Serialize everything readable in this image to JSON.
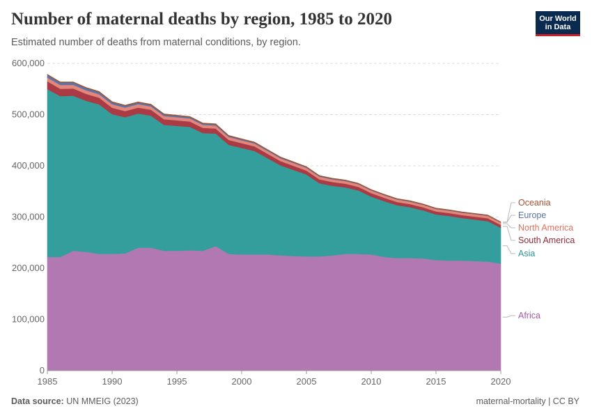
{
  "header": {
    "title": "Number of maternal deaths by region, 1985 to 2020",
    "subtitle": "Estimated number of deaths from maternal conditions, by region."
  },
  "logo": {
    "line1": "Our World",
    "line2": "in Data"
  },
  "footer": {
    "source_label": "Data source:",
    "source_value": "UN MMEIG (2023)",
    "slug": "maternal-mortality | CC BY"
  },
  "chart_data": {
    "type": "area",
    "stacked": true,
    "title": "Number of maternal deaths by region, 1985 to 2020",
    "subtitle": "Estimated number of deaths from maternal conditions, by region.",
    "xlabel": "",
    "ylabel": "",
    "x": [
      1985,
      1986,
      1987,
      1988,
      1989,
      1990,
      1991,
      1992,
      1993,
      1994,
      1995,
      1996,
      1997,
      1998,
      1999,
      2000,
      2001,
      2002,
      2003,
      2004,
      2005,
      2006,
      2007,
      2008,
      2009,
      2010,
      2011,
      2012,
      2013,
      2014,
      2015,
      2016,
      2017,
      2018,
      2019,
      2020
    ],
    "x_ticks": [
      1985,
      1990,
      1995,
      2000,
      2005,
      2010,
      2015,
      2020
    ],
    "x_ticks_labels": [
      "1985",
      "1990",
      "1995",
      "2000",
      "2005",
      "2010",
      "2015",
      "2020"
    ],
    "xlim": [
      1985,
      2020
    ],
    "ylim": [
      0,
      600000
    ],
    "y_ticks": [
      0,
      100000,
      200000,
      300000,
      400000,
      500000,
      600000
    ],
    "y_ticks_labels": [
      "0",
      "100,000",
      "200,000",
      "300,000",
      "400,000",
      "500,000",
      "600,000"
    ],
    "grid": "horizontal dashed",
    "legend": "right, inline labels",
    "series": [
      {
        "name": "Africa",
        "color": "#b278b1",
        "values": [
          222000,
          222000,
          234000,
          232000,
          228000,
          228000,
          229000,
          240000,
          240000,
          234000,
          234000,
          235000,
          234000,
          243000,
          228000,
          227000,
          227000,
          227000,
          225000,
          224000,
          223000,
          223000,
          225000,
          228000,
          228000,
          227000,
          222000,
          220000,
          220000,
          219000,
          216000,
          215000,
          215000,
          214000,
          213000,
          209000
        ]
      },
      {
        "name": "Asia",
        "color": "#339e9b",
        "values": [
          328000,
          314000,
          303000,
          295000,
          292000,
          273000,
          266000,
          262000,
          258000,
          246000,
          244000,
          241000,
          230000,
          220000,
          213000,
          208000,
          202000,
          188000,
          176000,
          168000,
          160000,
          143000,
          136000,
          130000,
          124000,
          113000,
          109000,
          103000,
          99000,
          94000,
          89000,
          87000,
          83000,
          81000,
          79000,
          70000
        ]
      },
      {
        "name": "South America",
        "color": "#aa3a44",
        "values": [
          15000,
          14500,
          14000,
          13500,
          13000,
          12500,
          12000,
          11800,
          11500,
          11000,
          10800,
          10500,
          10200,
          9800,
          9500,
          9200,
          8900,
          8600,
          8300,
          8000,
          7800,
          7600,
          7400,
          7200,
          7000,
          6800,
          6600,
          6400,
          6200,
          6100,
          6000,
          5900,
          5800,
          5800,
          5700,
          5600
        ]
      },
      {
        "name": "North America",
        "color": "#e1877c",
        "values": [
          7500,
          7300,
          7200,
          7000,
          6900,
          6800,
          6700,
          6600,
          6500,
          6300,
          6200,
          6100,
          6000,
          5900,
          5800,
          5700,
          5600,
          5500,
          5400,
          5400,
          5300,
          5200,
          5200,
          5100,
          5100,
          5000,
          5000,
          4900,
          4900,
          4800,
          4800,
          4800,
          4700,
          4700,
          4700,
          4600
        ]
      },
      {
        "name": "Europe",
        "color": "#5b74a8",
        "values": [
          5000,
          4700,
          4500,
          4300,
          4000,
          3700,
          3500,
          3300,
          3100,
          2900,
          2700,
          2500,
          2300,
          2100,
          1900,
          1800,
          1700,
          1600,
          1500,
          1400,
          1300,
          1200,
          1100,
          1000,
          950,
          900,
          850,
          800,
          750,
          700,
          650,
          620,
          600,
          580,
          560,
          540
        ]
      },
      {
        "name": "Oceania",
        "color": "#a0522d",
        "values": [
          1300,
          1300,
          1300,
          1300,
          1300,
          1300,
          1300,
          1250,
          1250,
          1250,
          1200,
          1200,
          1200,
          1200,
          1200,
          1150,
          1150,
          1150,
          1100,
          1100,
          1100,
          1100,
          1050,
          1050,
          1050,
          1000,
          1000,
          1000,
          1000,
          1000,
          950,
          950,
          950,
          950,
          950,
          900
        ]
      }
    ],
    "labels": [
      {
        "name": "Oceania",
        "color": "#a0522d"
      },
      {
        "name": "Europe",
        "color": "#5b74a8"
      },
      {
        "name": "North America",
        "color": "#e0715f"
      },
      {
        "name": "South America",
        "color": "#8c2a35"
      },
      {
        "name": "Asia",
        "color": "#2a9490"
      },
      {
        "name": "Africa",
        "color": "#a55aa6"
      }
    ]
  }
}
